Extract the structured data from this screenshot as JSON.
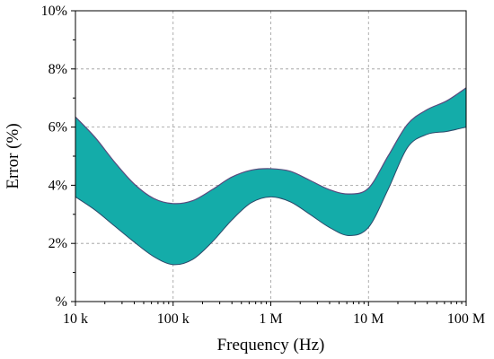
{
  "chart_data": {
    "type": "area",
    "xlabel": "Frequency (Hz)",
    "ylabel": "Error (%)",
    "x_scale": "log",
    "xlim": [
      10000,
      100000000
    ],
    "ylim": [
      0,
      10
    ],
    "grid": true,
    "x_ticks": [
      {
        "value": 10000,
        "label": "10 k"
      },
      {
        "value": 100000,
        "label": "100 k"
      },
      {
        "value": 1000000,
        "label": "1 M"
      },
      {
        "value": 10000000,
        "label": "10 M"
      },
      {
        "value": 100000000,
        "label": "100 M"
      }
    ],
    "y_ticks": [
      {
        "value": 0,
        "label": "%"
      },
      {
        "value": 2,
        "label": "2%"
      },
      {
        "value": 4,
        "label": "4%"
      },
      {
        "value": 6,
        "label": "6%"
      },
      {
        "value": 8,
        "label": "8%"
      },
      {
        "value": 10,
        "label": "10%"
      }
    ],
    "fill_color": "#14aca9",
    "upper_line_color": "#5a4a7e",
    "lower_line_color": "#2a4a6a",
    "band": {
      "x": [
        10000,
        15850,
        25120,
        39810,
        63100,
        100000,
        158500,
        251200,
        398100,
        631000,
        1000000,
        1585000,
        2512000,
        3981000,
        6310000,
        10000000,
        15850000,
        25120000,
        39810000,
        63100000,
        100000000
      ],
      "upper": [
        6.35,
        5.65,
        4.8,
        4.05,
        3.55,
        3.37,
        3.47,
        3.85,
        4.28,
        4.52,
        4.57,
        4.48,
        4.17,
        3.85,
        3.7,
        3.9,
        5.0,
        6.1,
        6.6,
        6.9,
        7.35
      ],
      "lower": [
        3.6,
        3.15,
        2.6,
        2.05,
        1.55,
        1.27,
        1.45,
        2.05,
        2.8,
        3.4,
        3.6,
        3.43,
        3.0,
        2.55,
        2.27,
        2.55,
        3.85,
        5.3,
        5.75,
        5.85,
        6.0
      ]
    }
  }
}
